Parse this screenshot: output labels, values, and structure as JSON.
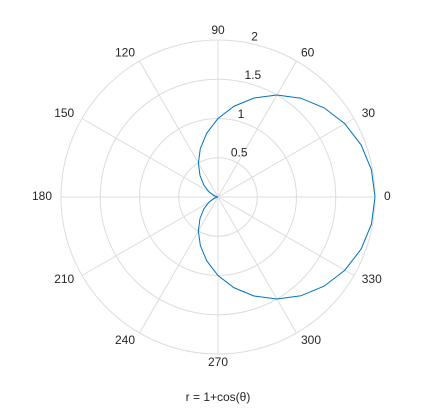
{
  "chart_data": {
    "type": "polar",
    "title": "r = 1+cos(θ)",
    "theta": [
      0,
      10,
      20,
      30,
      40,
      50,
      60,
      70,
      80,
      90,
      100,
      110,
      120,
      130,
      140,
      150,
      160,
      170,
      180,
      190,
      200,
      210,
      220,
      230,
      240,
      250,
      260,
      270,
      280,
      290,
      300,
      310,
      320,
      330,
      340,
      350,
      360
    ],
    "r": [
      2,
      1.985,
      1.94,
      1.866,
      1.766,
      1.643,
      1.5,
      1.342,
      1.174,
      1,
      0.826,
      0.658,
      0.5,
      0.357,
      0.234,
      0.134,
      0.06,
      0.015,
      0,
      0.015,
      0.06,
      0.134,
      0.234,
      0.357,
      0.5,
      0.658,
      0.826,
      1,
      1.174,
      1.342,
      1.5,
      1.643,
      1.766,
      1.866,
      1.94,
      1.985,
      2
    ],
    "color": "#0072bd",
    "rlim": [
      0,
      2
    ],
    "rticks": [
      0.5,
      1,
      1.5,
      2
    ],
    "thetaticks": [
      0,
      30,
      60,
      90,
      120,
      150,
      180,
      210,
      240,
      270,
      300,
      330
    ],
    "grid": true
  }
}
